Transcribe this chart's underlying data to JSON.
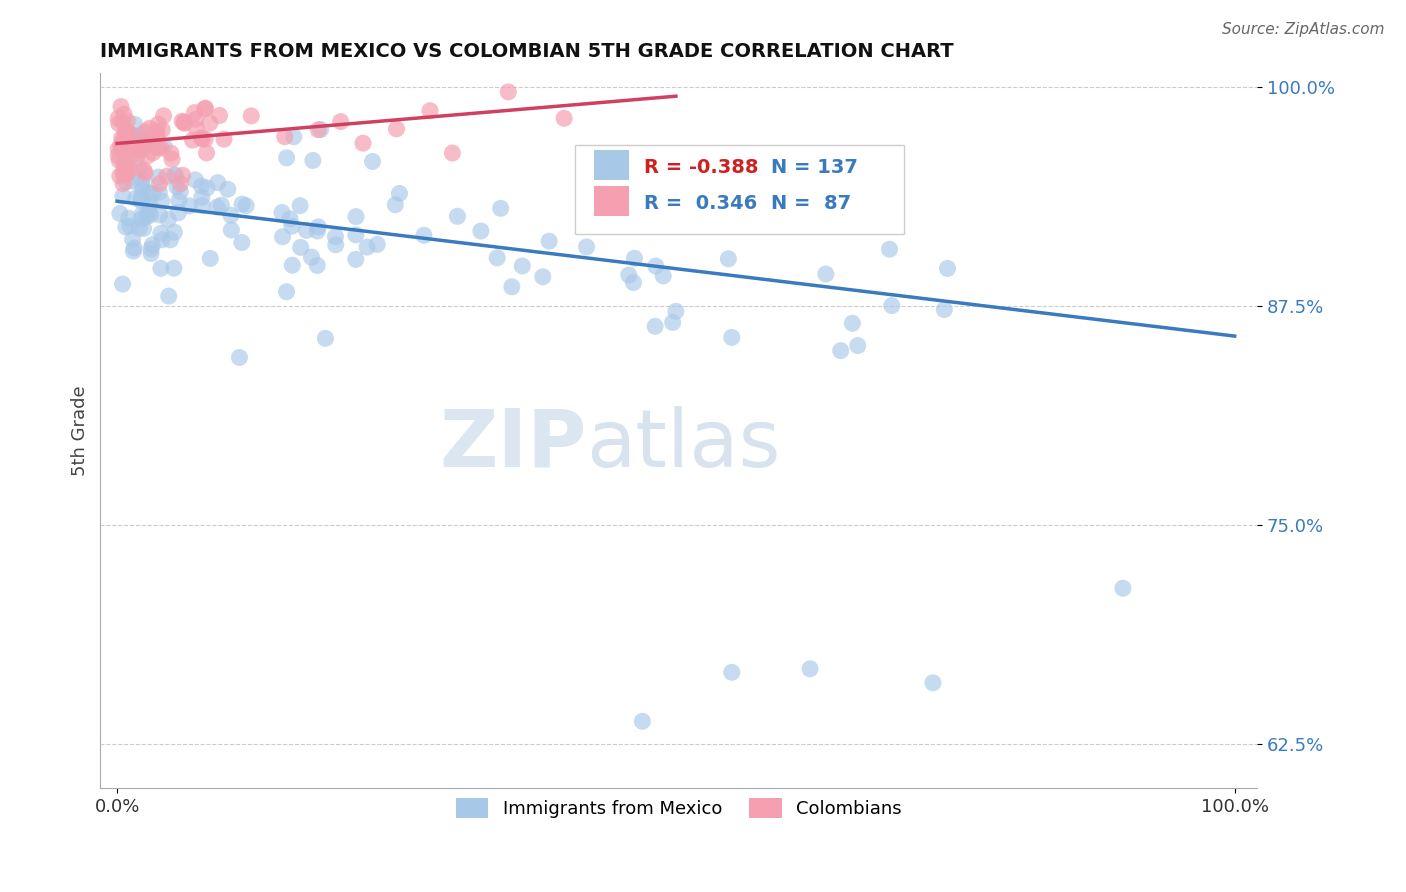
{
  "title": "IMMIGRANTS FROM MEXICO VS COLOMBIAN 5TH GRADE CORRELATION CHART",
  "source_text": "Source: ZipAtlas.com",
  "ylabel": "5th Grade",
  "xlim": [
    0.0,
    1.0
  ],
  "ylim": [
    0.6,
    1.008
  ],
  "yticks": [
    0.625,
    0.75,
    0.875,
    1.0
  ],
  "ytick_labels": [
    "62.5%",
    "75.0%",
    "87.5%",
    "100.0%"
  ],
  "legend_r_mexico": "-0.388",
  "legend_n_mexico": 137,
  "legend_r_colombian": "0.346",
  "legend_n_colombian": 87,
  "blue_color": "#a8c8e8",
  "pink_color": "#f4a0b0",
  "blue_line_color": "#3a7abf",
  "pink_line_color": "#d04060",
  "watermark_zip": "ZIP",
  "watermark_atlas": "atlas",
  "blue_line_x0": 0.0,
  "blue_line_y0": 0.935,
  "blue_line_x1": 1.0,
  "blue_line_y1": 0.858,
  "pink_line_x0": 0.0,
  "pink_line_y0": 0.968,
  "pink_line_x1": 0.5,
  "pink_line_y1": 0.995
}
